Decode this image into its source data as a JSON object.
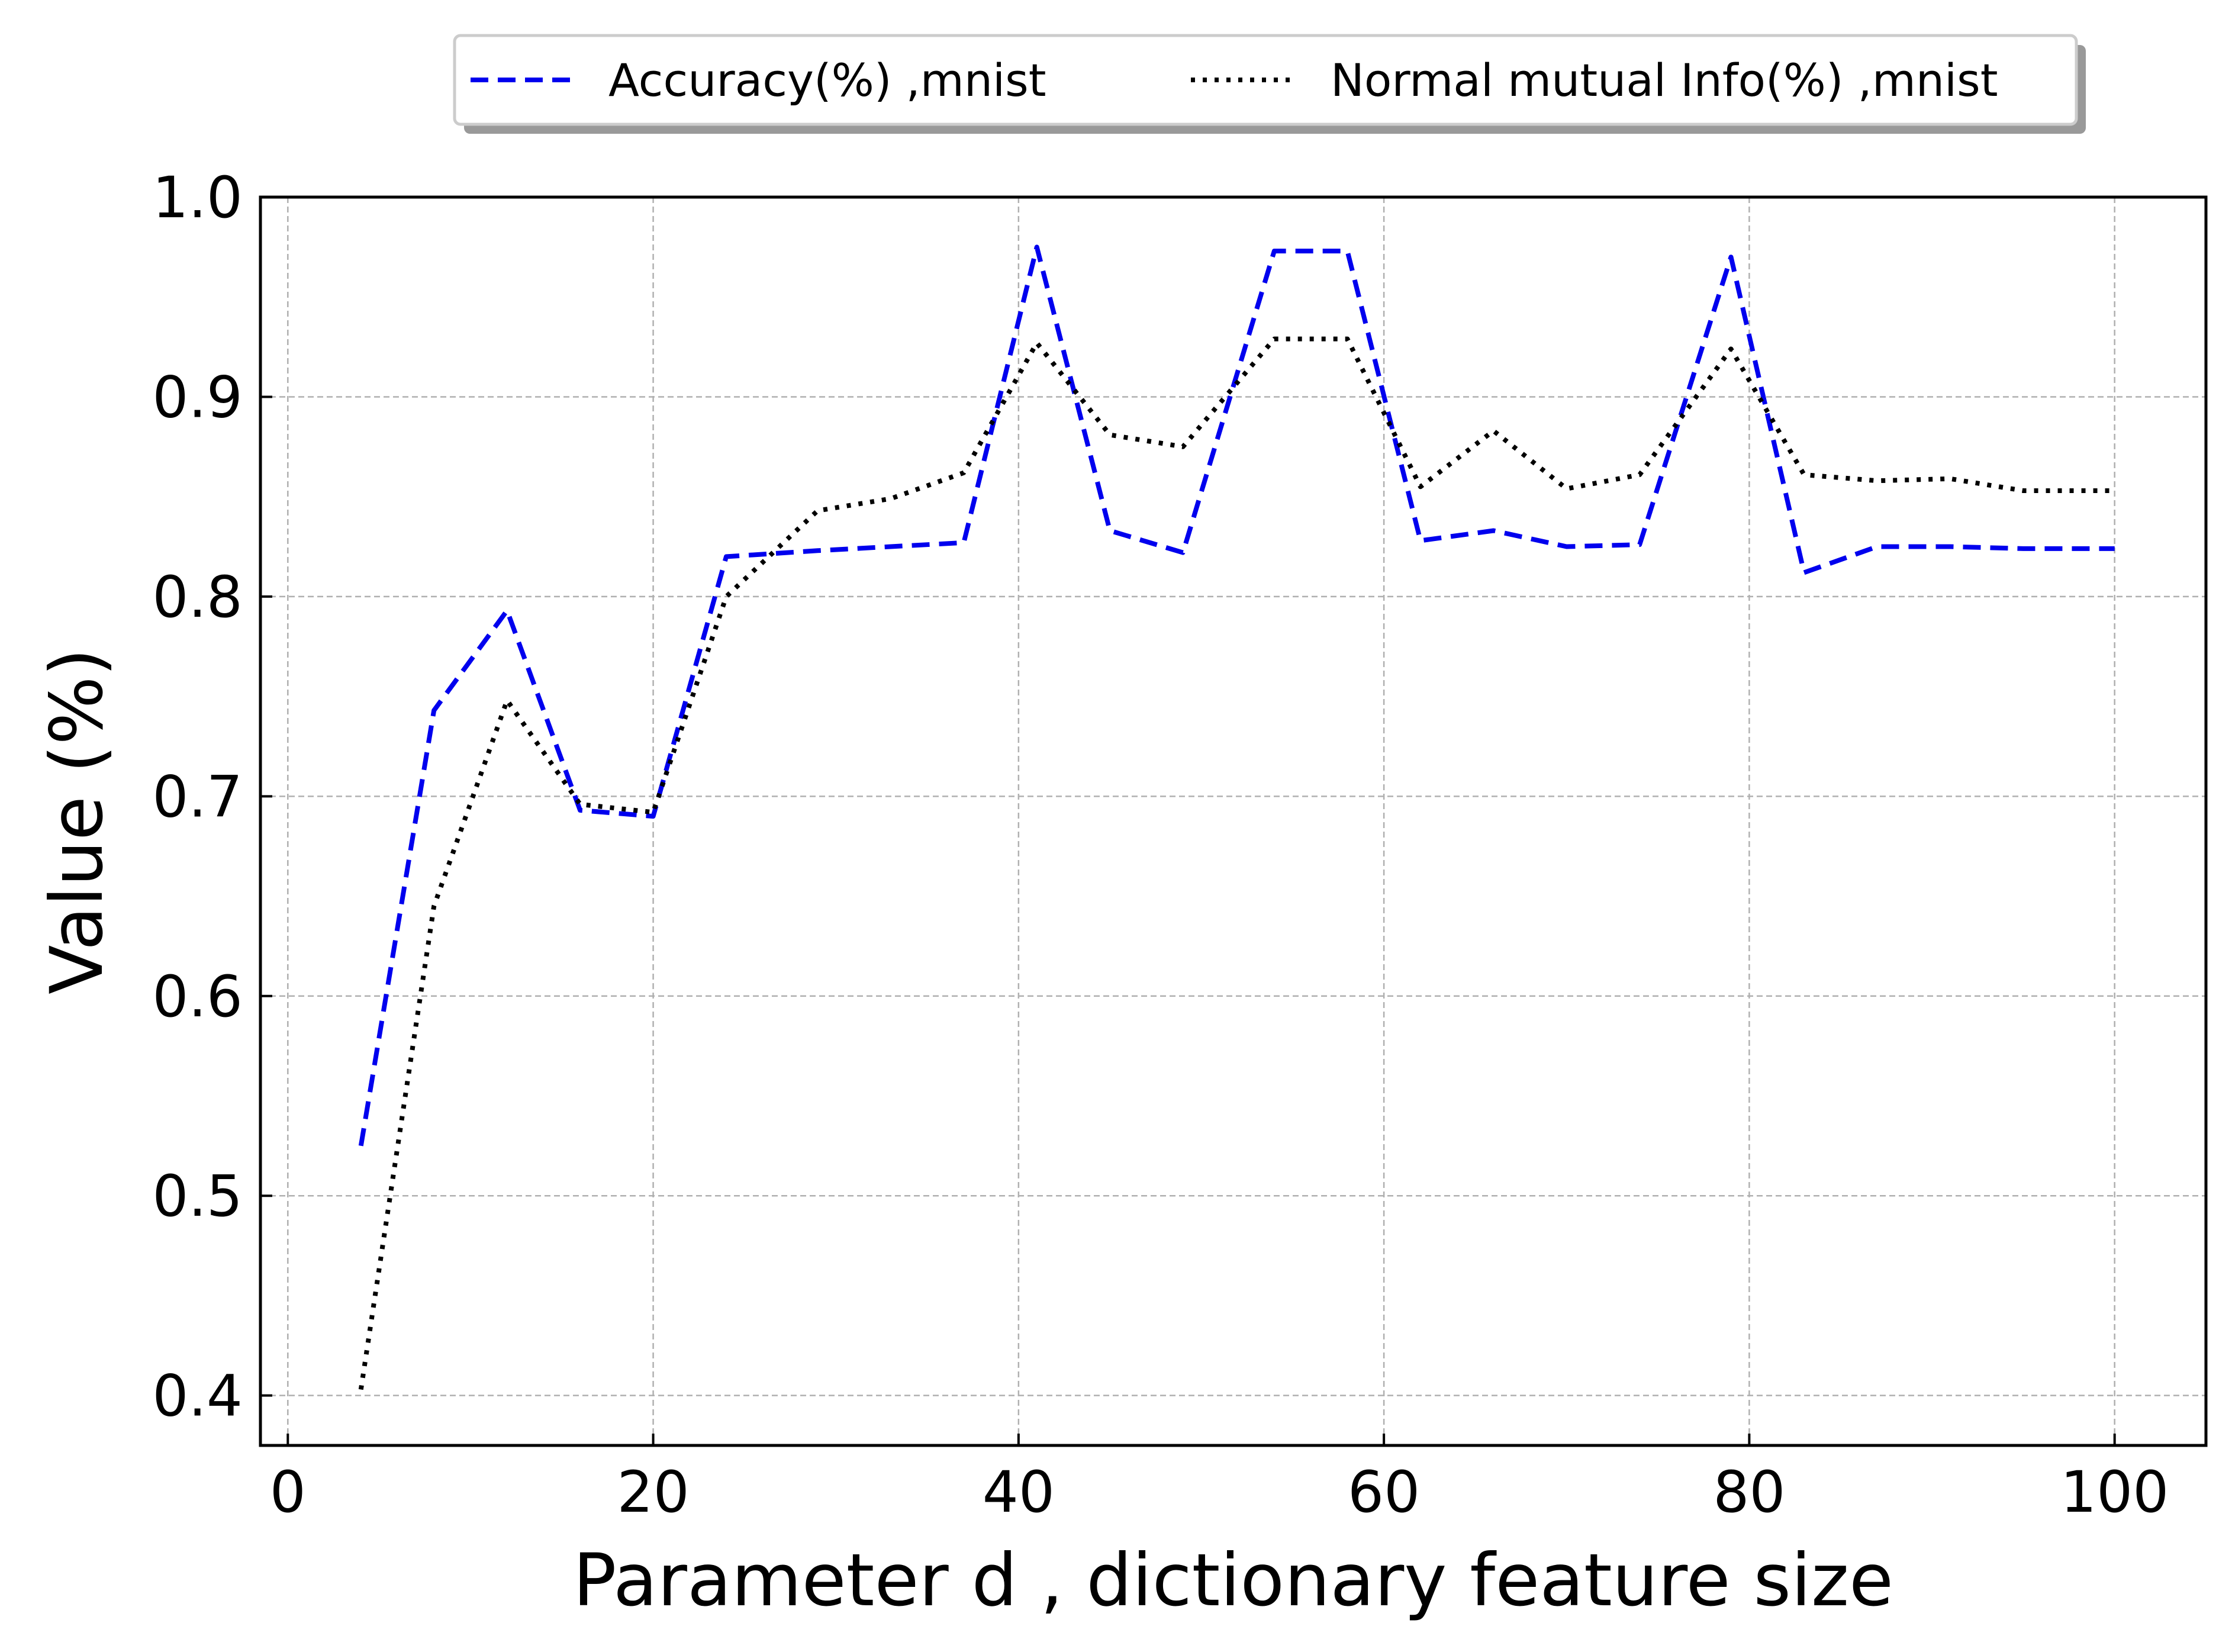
{
  "chart_data": {
    "type": "line",
    "title": "",
    "xlabel": "Parameter d , dictionary feature size",
    "ylabel": "Value (%)",
    "xlim": [
      -1.5,
      105
    ],
    "ylim": [
      0.375,
      1.0
    ],
    "xticks": [
      0,
      20,
      40,
      60,
      80,
      100
    ],
    "xtick_labels": [
      "0",
      "20",
      "40",
      "60",
      "80",
      "100"
    ],
    "yticks": [
      0.4,
      0.5,
      0.6,
      0.7,
      0.8,
      0.9,
      1.0
    ],
    "ytick_labels": [
      "0.4",
      "0.5",
      "0.6",
      "0.7",
      "0.8",
      "0.9",
      "1.0"
    ],
    "grid": true,
    "legend_position": "top-center, outside plot",
    "series": [
      {
        "name": "Accuracy(%) ,mnist",
        "color": "#0000ee",
        "style": "dashed",
        "x": [
          4,
          8,
          12,
          16,
          20,
          24,
          29,
          33,
          37,
          41,
          45,
          49,
          54,
          58,
          62,
          66,
          70,
          74,
          79,
          83,
          87,
          91,
          95,
          100
        ],
        "y": [
          0.525,
          0.743,
          0.793,
          0.693,
          0.69,
          0.82,
          0.823,
          0.825,
          0.827,
          0.975,
          0.833,
          0.822,
          0.973,
          0.973,
          0.828,
          0.833,
          0.825,
          0.826,
          0.97,
          0.812,
          0.825,
          0.825,
          0.824,
          0.824
        ]
      },
      {
        "name": "Normal mutual Info(%) ,mnist",
        "color": "#000000",
        "style": "dotted",
        "x": [
          4,
          8,
          12,
          16,
          20,
          24,
          29,
          33,
          37,
          41,
          45,
          49,
          54,
          58,
          62,
          66,
          70,
          74,
          79,
          83,
          87,
          91,
          95,
          100
        ],
        "y": [
          0.403,
          0.645,
          0.748,
          0.696,
          0.692,
          0.8,
          0.843,
          0.849,
          0.862,
          0.927,
          0.881,
          0.875,
          0.929,
          0.929,
          0.855,
          0.883,
          0.854,
          0.861,
          0.924,
          0.861,
          0.858,
          0.859,
          0.853,
          0.853
        ]
      }
    ]
  }
}
